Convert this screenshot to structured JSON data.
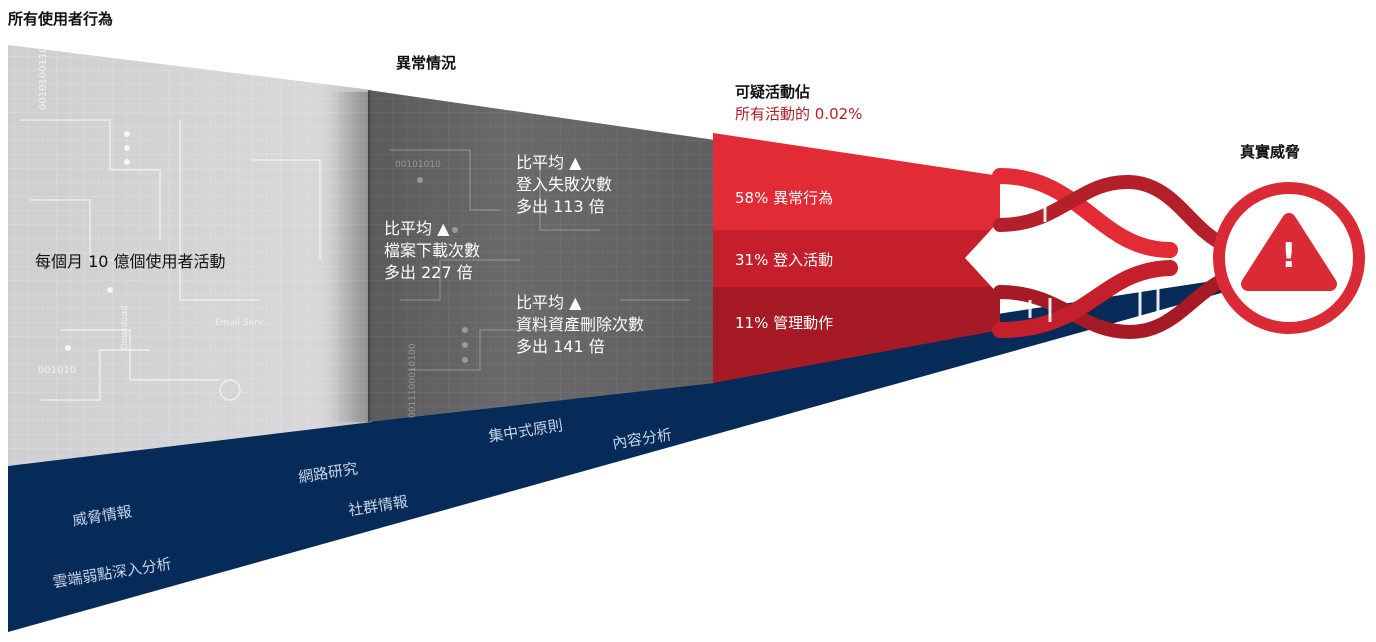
{
  "stage1": {
    "heading": "所有使用者行為",
    "text": "每個月 10 億個使用者活動"
  },
  "stage2": {
    "heading": "異常情況",
    "items": [
      {
        "line1": "比平均 ▲",
        "line2": "檔案下載次數",
        "line3": "多出 227 倍"
      },
      {
        "line1": "比平均 ▲",
        "line2": "登入失敗次數",
        "line3": "多出 113 倍"
      },
      {
        "line1": "比平均 ▲",
        "line2": "資料資產刪除次數",
        "line3": "多出 141 倍"
      }
    ]
  },
  "stage3": {
    "heading": "可疑活動佔",
    "subheading": "所有活動的 0.02%",
    "segments": [
      {
        "label": "58% 異常行為",
        "color": "#e32b35"
      },
      {
        "label": "31% 登入活動",
        "color": "#c11f2b"
      },
      {
        "label": "11% 管理動作",
        "color": "#a51a24"
      }
    ]
  },
  "stage4": {
    "heading": "真實威脅",
    "icon": "warning-triangle-icon",
    "icon_glyph": "!",
    "color": "#d92a35"
  },
  "base": {
    "color": "#062b59",
    "labels": [
      "威脅情報",
      "雲端弱點深入分析",
      "網路研究",
      "社群情報",
      "集中式原則",
      "內容分析"
    ]
  },
  "decor_text": [
    "0010100110",
    "001010",
    "00101010",
    "Download",
    "Email Serv...",
    "0011100010100"
  ]
}
